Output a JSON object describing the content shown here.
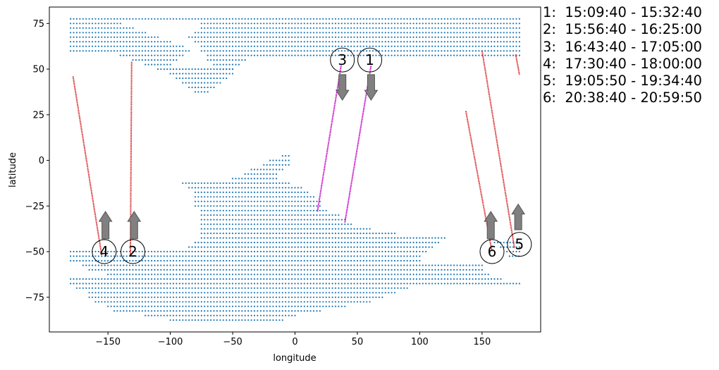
{
  "chart_data": {
    "type": "scatter",
    "title": "",
    "xlabel": "longitude",
    "ylabel": "latitude",
    "xlim": [
      -197,
      197
    ],
    "ylim": [
      -94,
      84
    ],
    "xticks": [
      -150,
      -100,
      -50,
      0,
      50,
      100,
      150
    ],
    "yticks": [
      -75,
      -50,
      -25,
      0,
      25,
      50,
      75
    ],
    "grid": false,
    "legend": "none",
    "point_color": "#1f77b4",
    "track_colors": {
      "descending": "#d62728",
      "ascending": "#bf00bf"
    },
    "arrow_color": "#808080",
    "grid_spacing_deg": 2.5,
    "land_regions": [
      {
        "name": "north",
        "lat_range": [
          37.5,
          77.5
        ],
        "row_lon_ranges": [
          {
            "lat": 77.5,
            "lon": [
              -180,
              -180
            ]
          },
          {
            "lat": 75.0,
            "lon": [
              -180,
              -140
            ]
          },
          {
            "lat": 72.5,
            "lon": [
              -180,
              -130
            ]
          },
          {
            "lat": 70.0,
            "lon": [
              -180,
              -120
            ]
          },
          {
            "lat": 67.5,
            "lon": [
              -180,
              -110
            ]
          },
          {
            "lat": 65.0,
            "lon": [
              -180,
              -100
            ]
          },
          {
            "lat": 62.5,
            "lon": [
              -180,
              -90
            ]
          },
          {
            "lat": 60.0,
            "lon": [
              -180,
              -85
            ]
          },
          {
            "lat": 57.5,
            "lon": [
              -140,
              -90
            ]
          },
          {
            "lat": 55.0,
            "lon": [
              -130,
              -95
            ]
          },
          {
            "lat": 52.5,
            "lon": [
              -120,
              -100
            ]
          },
          {
            "lat": 50.0,
            "lon": [
              -110,
              -50
            ]
          },
          {
            "lat": 47.5,
            "lon": [
              -100,
              -50
            ]
          },
          {
            "lat": 45.0,
            "lon": [
              -95,
              -55
            ]
          },
          {
            "lat": 42.5,
            "lon": [
              -90,
              -60
            ]
          },
          {
            "lat": 40.0,
            "lon": [
              -85,
              -65
            ]
          },
          {
            "lat": 37.5,
            "lon": [
              -80,
              -70
            ]
          }
        ],
        "band_east": [
          {
            "lat": 77.5,
            "lon": [
              -180,
              180
            ]
          },
          {
            "lat": 75.0,
            "lon": [
              -75,
              180
            ]
          },
          {
            "lat": 72.5,
            "lon": [
              -75,
              180
            ]
          },
          {
            "lat": 70.0,
            "lon": [
              -80,
              180
            ]
          },
          {
            "lat": 67.5,
            "lon": [
              -85,
              180
            ]
          },
          {
            "lat": 65.0,
            "lon": [
              -80,
              180
            ]
          },
          {
            "lat": 62.5,
            "lon": [
              -75,
              180
            ]
          },
          {
            "lat": 60.0,
            "lon": [
              -75,
              180
            ]
          },
          {
            "lat": 57.5,
            "lon": [
              -70,
              180
            ]
          },
          {
            "lat": 55.0,
            "lon": [
              -70,
              -40
            ]
          },
          {
            "lat": 52.5,
            "lon": [
              -65,
              -45
            ]
          },
          {
            "lat": 50.0,
            "lon": [
              -60,
              -50
            ]
          }
        ]
      },
      {
        "name": "south",
        "rows": [
          {
            "lat": 2.5,
            "lon": [
              -10,
              -5
            ]
          },
          {
            "lat": 0.0,
            "lon": [
              -20,
              -5
            ]
          },
          {
            "lat": -2.5,
            "lon": [
              -25,
              -5
            ]
          },
          {
            "lat": -5.0,
            "lon": [
              -35,
              -10
            ]
          },
          {
            "lat": -7.5,
            "lon": [
              -40,
              -15
            ]
          },
          {
            "lat": -10.0,
            "lon": [
              -50,
              -15
            ]
          },
          {
            "lat": -12.5,
            "lon": [
              -90,
              -5
            ]
          },
          {
            "lat": -15.0,
            "lon": [
              -85,
              5
            ]
          },
          {
            "lat": -17.5,
            "lon": [
              -80,
              10
            ]
          },
          {
            "lat": -20.0,
            "lon": [
              -80,
              15
            ]
          },
          {
            "lat": -22.5,
            "lon": [
              -80,
              20
            ]
          },
          {
            "lat": -25.0,
            "lon": [
              -80,
              20
            ]
          },
          {
            "lat": -27.5,
            "lon": [
              -75,
              25
            ]
          },
          {
            "lat": -30.0,
            "lon": [
              -75,
              35
            ]
          },
          {
            "lat": -32.5,
            "lon": [
              -75,
              40
            ]
          },
          {
            "lat": -35.0,
            "lon": [
              -75,
              45
            ]
          },
          {
            "lat": -37.5,
            "lon": [
              -75,
              60
            ]
          },
          {
            "lat": -40.0,
            "lon": [
              -75,
              80
            ]
          },
          {
            "lat": -42.5,
            "lon": [
              -75,
              120
            ]
          },
          {
            "lat": -45.0,
            "lon": [
              -80,
              115
            ]
          },
          {
            "lat": -47.5,
            "lon": [
              -85,
              110
            ]
          },
          {
            "lat": -50.0,
            "lon": [
              -180,
              105
            ]
          },
          {
            "lat": -52.5,
            "lon": [
              -180,
              100
            ]
          },
          {
            "lat": -55.0,
            "lon": [
              -180,
              100
            ]
          },
          {
            "lat": -57.5,
            "lon": [
              -170,
              150
            ]
          },
          {
            "lat": -60.0,
            "lon": [
              -165,
              150
            ]
          },
          {
            "lat": -62.5,
            "lon": [
              -150,
              155
            ]
          },
          {
            "lat": -65.0,
            "lon": [
              -180,
              165
            ]
          },
          {
            "lat": -67.5,
            "lon": [
              -180,
              180
            ]
          },
          {
            "lat": -70.0,
            "lon": [
              -175,
              90
            ]
          },
          {
            "lat": -72.5,
            "lon": [
              -165,
              80
            ]
          },
          {
            "lat": -75.0,
            "lon": [
              -165,
              70
            ]
          },
          {
            "lat": -77.5,
            "lon": [
              -160,
              60
            ]
          },
          {
            "lat": -80.0,
            "lon": [
              -150,
              40
            ]
          },
          {
            "lat": -82.5,
            "lon": [
              -145,
              20
            ]
          },
          {
            "lat": -85.0,
            "lon": [
              -120,
              0
            ]
          },
          {
            "lat": -87.5,
            "lon": [
              -100,
              -10
            ]
          }
        ],
        "east_tip": [
          {
            "lat": -45.0,
            "lon": [
              160,
              180
            ]
          },
          {
            "lat": -47.5,
            "lon": [
              165,
              180
            ]
          },
          {
            "lat": -50.0,
            "lon": [
              170,
              180
            ]
          },
          {
            "lat": -52.5,
            "lon": [
              172,
              180
            ]
          }
        ]
      }
    ],
    "tracks": [
      {
        "id": "1",
        "direction": "ascending",
        "start": [
          40,
          -34
        ],
        "end": [
          61,
          52
        ],
        "arrow": "down"
      },
      {
        "id": "2",
        "direction": "descending",
        "start": [
          -131,
          54
        ],
        "end": [
          -132,
          -52
        ],
        "arrow": "up"
      },
      {
        "id": "3",
        "direction": "ascending",
        "start": [
          18,
          -28
        ],
        "end": [
          37,
          52
        ],
        "arrow": "down"
      },
      {
        "id": "4",
        "direction": "descending",
        "start": [
          -178,
          46
        ],
        "end": [
          -155,
          -52
        ],
        "arrow": "up"
      },
      {
        "id": "5",
        "direction": "descending",
        "start": [
          177,
          58
        ],
        "end": [
          180,
          47
        ],
        "arrow": "up"
      },
      {
        "id": "6",
        "direction": "descending",
        "start": [
          137,
          27
        ],
        "end": [
          158,
          -50
        ],
        "arrow": "up"
      },
      {
        "id": "6b",
        "direction": "descending",
        "start": [
          150,
          60
        ],
        "end": [
          176,
          -48
        ],
        "arrow": "none"
      }
    ],
    "markers": [
      {
        "label": "1",
        "lon": 60,
        "lat": 55
      },
      {
        "label": "2",
        "lon": -130,
        "lat": -50
      },
      {
        "label": "3",
        "lon": 38,
        "lat": 55
      },
      {
        "label": "4",
        "lon": -153,
        "lat": -50
      },
      {
        "label": "5",
        "lon": 180,
        "lat": -46
      },
      {
        "label": "6",
        "lon": 158,
        "lat": -50
      }
    ],
    "arrows": [
      {
        "lon": 61,
        "lat_from": 47,
        "lat_to": 33,
        "dir": "down"
      },
      {
        "lon": 38,
        "lat_from": 47,
        "lat_to": 33,
        "dir": "down"
      },
      {
        "lon": -129,
        "lat_from": -43,
        "lat_to": -28,
        "dir": "up"
      },
      {
        "lon": -152,
        "lat_from": -43,
        "lat_to": -28,
        "dir": "up"
      },
      {
        "lon": 157,
        "lat_from": -43,
        "lat_to": -28,
        "dir": "up"
      },
      {
        "lon": 179,
        "lat_from": -38,
        "lat_to": -24,
        "dir": "up"
      }
    ]
  },
  "time_ranges": [
    "1:  15:09:40 - 15:32:40",
    "2:  15:56:40 - 16:25:00",
    "3:  16:43:40 - 17:05:00",
    "4:  17:30:40 - 18:00:00",
    "5:  19:05:50 - 19:34:40",
    "6:  20:38:40 - 20:59:50"
  ]
}
